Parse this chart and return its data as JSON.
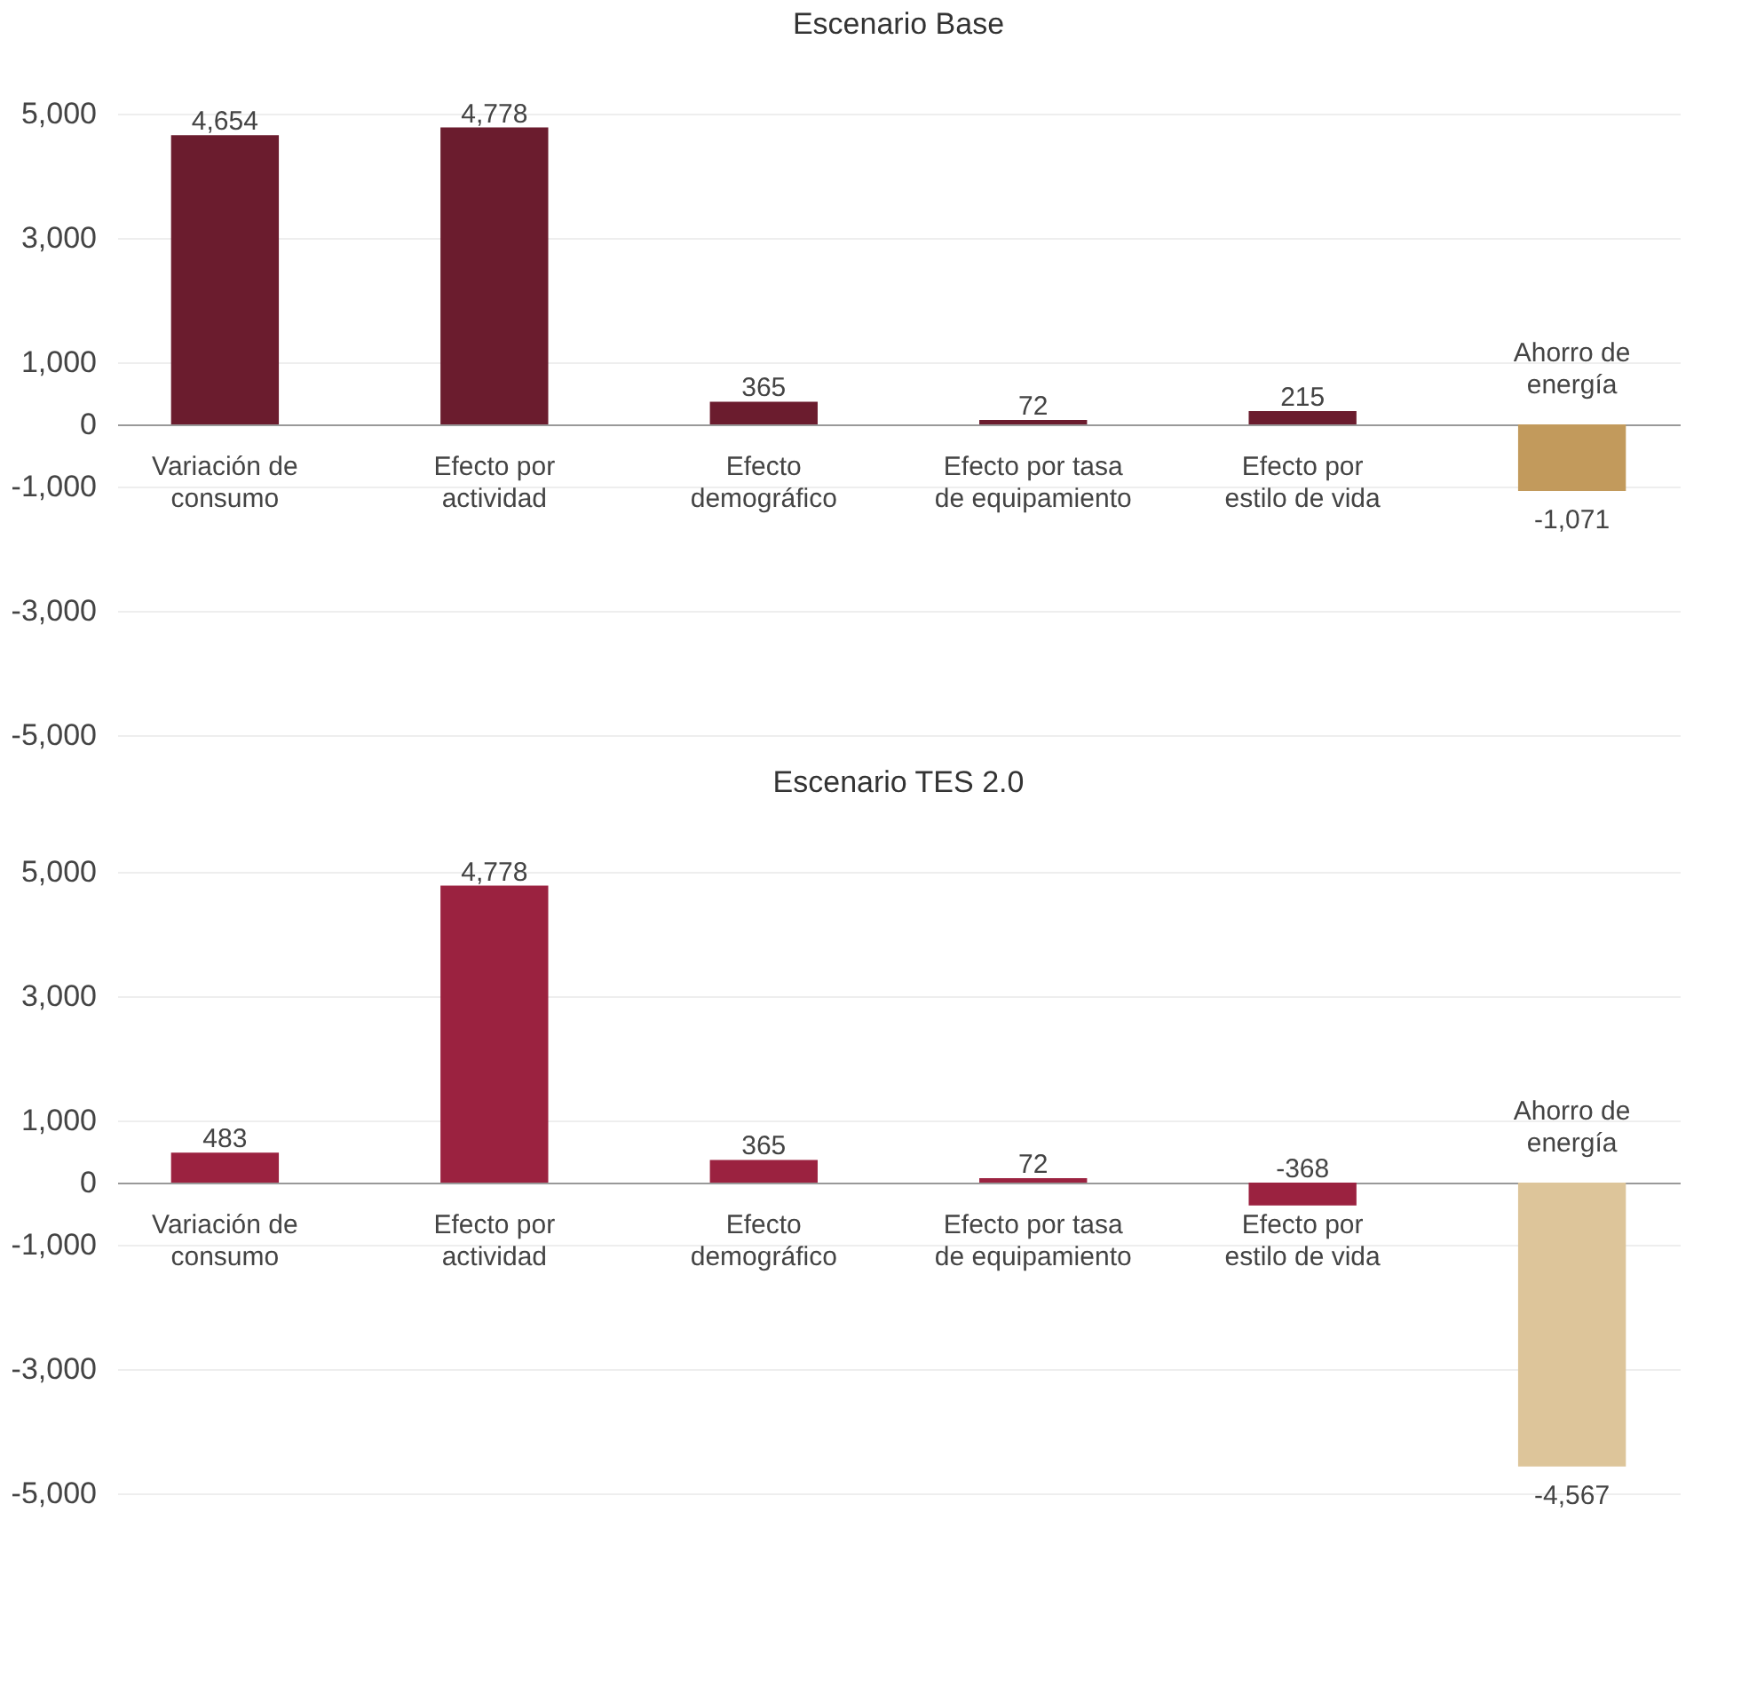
{
  "chart_data": [
    {
      "type": "bar",
      "title": "Escenario Base",
      "categories": [
        "Variación de consumo",
        "Efecto por actividad",
        "Efecto demográfico",
        "Efecto por tasa de equipamiento",
        "Efecto por estilo de vida",
        "Ahorro de energía"
      ],
      "values": [
        4654,
        4778,
        365,
        72,
        215,
        -1071
      ],
      "value_labels": [
        "4,654",
        "4,778",
        "365",
        "72",
        "215",
        "-1,071"
      ],
      "colors": [
        "#6b1c2e",
        "#6b1c2e",
        "#6b1c2e",
        "#6b1c2e",
        "#6b1c2e",
        "#c29a5c"
      ],
      "ylim": [
        -5000,
        5000
      ],
      "yticks": [
        {
          "value": 5000,
          "label": "5,000"
        },
        {
          "value": 3000,
          "label": "3,000"
        },
        {
          "value": 1000,
          "label": "1,000"
        },
        0,
        {
          "value": -1000,
          "label": "-1,000"
        },
        {
          "value": -3000,
          "label": "-3,000"
        },
        {
          "value": -5000,
          "label": "-5,000"
        }
      ],
      "grid": "y"
    },
    {
      "type": "bar",
      "title": "Escenario TES 2.0",
      "categories": [
        "Variación de consumo",
        "Efecto por actividad",
        "Efecto demográfico",
        "Efecto por tasa de equipamiento",
        "Efecto por estilo de vida",
        "Ahorro de energía"
      ],
      "values": [
        483,
        4778,
        365,
        72,
        -368,
        -4567
      ],
      "value_labels": [
        "483",
        "4,778",
        "365",
        "72",
        "-368",
        "-4,567"
      ],
      "colors": [
        "#9b2240",
        "#9b2240",
        "#9b2240",
        "#9b2240",
        "#9b2240",
        "#ddc59a"
      ],
      "ylim": [
        -5000,
        5000
      ],
      "yticks": [
        {
          "value": 5000,
          "label": "5,000"
        },
        {
          "value": 3000,
          "label": "3,000"
        },
        {
          "value": 1000,
          "label": "1,000"
        },
        0,
        {
          "value": -1000,
          "label": "-1,000"
        },
        {
          "value": -3000,
          "label": "-3,000"
        },
        {
          "value": -5000,
          "label": "-5,000"
        }
      ],
      "grid": "y"
    }
  ]
}
